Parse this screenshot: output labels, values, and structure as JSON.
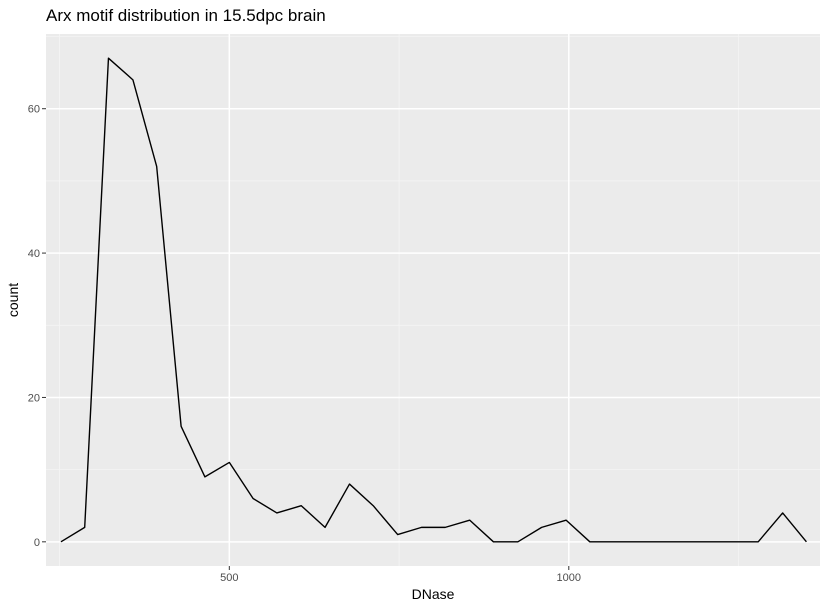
{
  "chart_data": {
    "type": "line",
    "title": "Arx motif distribution in 15.5dpc brain",
    "xlabel": "DNase",
    "ylabel": "count",
    "xlim": [
      230,
      1370
    ],
    "ylim": [
      -3.35,
      70.35
    ],
    "x_ticks": [
      500,
      1000
    ],
    "x_tick_labels": [
      "500",
      "1000"
    ],
    "x_minor_ticks": [
      250,
      750,
      1250
    ],
    "y_ticks": [
      0,
      20,
      40,
      60
    ],
    "y_tick_labels": [
      "0",
      "20",
      "40",
      "60"
    ],
    "y_minor_ticks": [
      10,
      30,
      50,
      70
    ],
    "grid": true,
    "series": [
      {
        "x": [
          252,
          287,
          322,
          358,
          393,
          429,
          464,
          500,
          535,
          570,
          606,
          641,
          677,
          712,
          748,
          783,
          818,
          854,
          889,
          925,
          960,
          996,
          1031,
          1067,
          1102,
          1138,
          1173,
          1208,
          1244,
          1279,
          1315,
          1350
        ],
        "values": [
          0,
          2,
          67,
          64,
          52,
          16,
          9,
          11,
          6,
          4,
          5,
          2,
          8,
          5,
          1,
          2,
          2,
          3,
          0,
          0,
          2,
          3,
          0,
          0,
          0,
          0,
          0,
          0,
          0,
          0,
          4,
          0
        ]
      }
    ]
  },
  "colors": {
    "panel_background": "#EBEBEB",
    "grid_major": "#FFFFFF",
    "grid_minor": "#F5F5F5",
    "line": "#000000",
    "tick_label": "#4D4D4D",
    "tick_mark": "#333333"
  }
}
